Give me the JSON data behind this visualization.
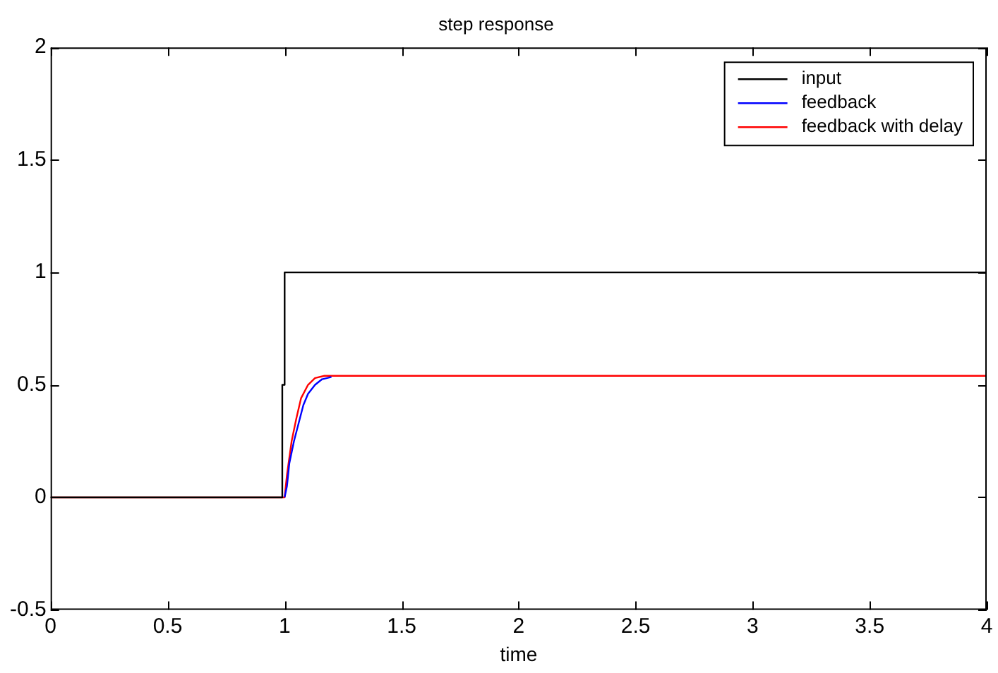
{
  "chart_data": {
    "type": "line",
    "title": "step response",
    "xlabel": "time",
    "xlim": [
      0,
      4
    ],
    "xticks": [
      0,
      0.5,
      1,
      1.5,
      2,
      2.5,
      3,
      3.5,
      4
    ],
    "ylim": [
      -0.5,
      2
    ],
    "yticks": [
      -0.5,
      0,
      0.5,
      1,
      1.5,
      2
    ],
    "grid": false,
    "legend": "top right",
    "marker": "none",
    "line_style": "solid",
    "series": [
      {
        "name": "input",
        "color": "#000000",
        "x": [
          0,
          0.99,
          0.99,
          1,
          1,
          4
        ],
        "values": [
          0,
          0,
          0.5,
          0.5,
          1,
          1
        ]
      },
      {
        "name": "feedback",
        "color": "#0000ff",
        "x": [
          1,
          1.01,
          1.02,
          1.04,
          1.06,
          1.08,
          1.1,
          1.13,
          1.16,
          1.2
        ],
        "values": [
          0,
          0.05,
          0.15,
          0.25,
          0.33,
          0.41,
          0.46,
          0.5,
          0.525,
          0.535
        ]
      },
      {
        "name": "feedback with delay",
        "color": "#ff0000",
        "x": [
          0,
          1,
          1.01,
          1.03,
          1.05,
          1.07,
          1.1,
          1.13,
          1.17,
          4
        ],
        "values": [
          0,
          0,
          0.1,
          0.25,
          0.35,
          0.44,
          0.5,
          0.53,
          0.54,
          0.54
        ]
      }
    ]
  }
}
